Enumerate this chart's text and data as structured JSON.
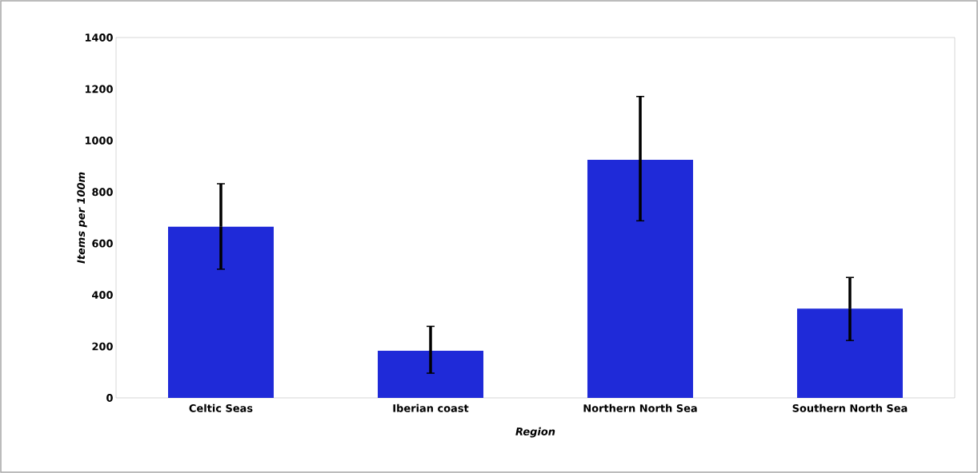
{
  "chart_data": {
    "type": "bar",
    "xlabel": "Region",
    "ylabel": "Items per 100m",
    "categories": [
      "Celtic Seas",
      "Iberian coast",
      "Northern North Sea",
      "Southern North Sea"
    ],
    "values": [
      665,
      183,
      925,
      347
    ],
    "errors": [
      [
        500,
        832
      ],
      [
        96,
        278
      ],
      [
        688,
        1171
      ],
      [
        223,
        468
      ]
    ],
    "color": "#1f2ad8",
    "ylim": [
      0,
      1400
    ],
    "yticks": [
      0,
      200,
      400,
      600,
      800,
      1000,
      1200,
      1400
    ],
    "grid": false
  }
}
